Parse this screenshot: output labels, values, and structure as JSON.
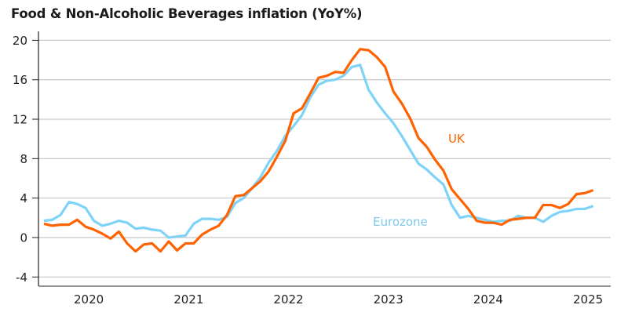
{
  "chart_data": {
    "type": "line",
    "title": "Food & Non-Alcoholic Beverages inflation (YoY%)",
    "xlabel": "",
    "ylabel": "",
    "ylim": [
      -4,
      20
    ],
    "y_ticks": [
      20,
      16,
      12,
      8,
      4,
      0,
      -4
    ],
    "y_tick_labels": [
      "20",
      "16",
      "12",
      "8",
      "4",
      "0",
      "-4"
    ],
    "x_start": "2019-07",
    "x_end": "2025-01",
    "x_tick_labels": [
      "2020",
      "2021",
      "2022",
      "2023",
      "2024",
      "2025"
    ],
    "x_tick_months_from_start": [
      6,
      18,
      30,
      42,
      54,
      66
    ],
    "grid": "horizontal",
    "legend": "inline labels",
    "series": [
      {
        "name": "UK",
        "color": "#ff6200",
        "values": [
          1.4,
          1.2,
          1.3,
          1.3,
          1.8,
          1.1,
          0.8,
          0.4,
          -0.1,
          0.6,
          -0.6,
          -1.4,
          -0.7,
          -0.6,
          -1.4,
          -0.4,
          -1.3,
          -0.6,
          -0.6,
          0.3,
          0.8,
          1.2,
          2.3,
          4.2,
          4.3,
          5.0,
          5.7,
          6.7,
          8.2,
          9.8,
          12.6,
          13.1,
          14.6,
          16.2,
          16.4,
          16.8,
          16.7,
          18.0,
          19.1,
          19.0,
          18.3,
          17.3,
          14.8,
          13.6,
          12.1,
          10.1,
          9.2,
          7.9,
          6.8,
          4.9,
          3.9,
          2.9,
          1.7,
          1.5,
          1.5,
          1.3,
          1.8,
          1.9,
          2.0,
          2.0,
          3.3,
          3.3,
          3.0,
          3.4,
          4.4,
          4.5,
          4.8
        ]
      },
      {
        "name": "Eurozone",
        "color": "#7fd3f7",
        "values": [
          1.7,
          1.8,
          2.3,
          3.6,
          3.4,
          3.0,
          1.7,
          1.2,
          1.4,
          1.7,
          1.5,
          0.9,
          1.0,
          0.8,
          0.7,
          0.0,
          0.1,
          0.2,
          1.4,
          1.9,
          1.9,
          1.8,
          2.1,
          3.5,
          4.0,
          5.0,
          6.1,
          7.6,
          8.8,
          10.3,
          11.3,
          12.4,
          14.2,
          15.5,
          15.9,
          16.0,
          16.4,
          17.3,
          17.5,
          15.0,
          13.7,
          12.6,
          11.6,
          10.3,
          8.9,
          7.5,
          6.9,
          6.1,
          5.4,
          3.3,
          2.0,
          2.2,
          2.0,
          1.8,
          1.6,
          1.7,
          1.7,
          2.2,
          2.0,
          2.0,
          1.6,
          2.2,
          2.6,
          2.7,
          2.9,
          2.9,
          3.2
        ]
      }
    ],
    "annotations": [
      {
        "text": "UK",
        "color": "#ff6200"
      },
      {
        "text": "Eurozone",
        "color": "#7fc8ee"
      }
    ]
  }
}
